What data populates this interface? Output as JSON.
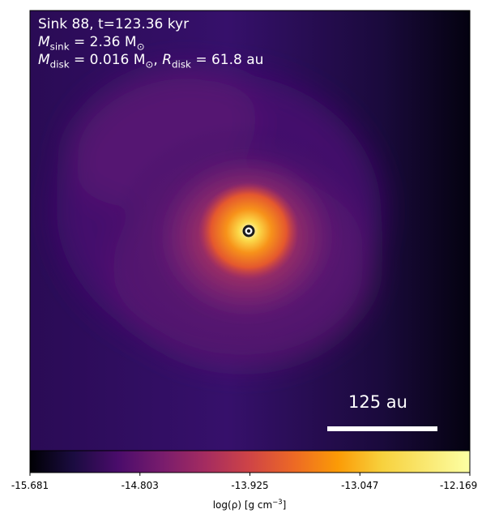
{
  "annotations": {
    "line1": "Sink 88, t=123.36 kyr",
    "line2_sym": "M",
    "line2_sub": "sink",
    "line2_val": " = 2.36 M",
    "line2_unit_sub": "⊙",
    "line3_sym": "M",
    "line3_sub": "disk",
    "line3_val": " = 0.016 M",
    "line3_unit_sub": "⊙",
    "line3_sep": ", ",
    "line3_sym2": "R",
    "line3_sub2": "disk",
    "line3_val2": " = 61.8 au"
  },
  "scale_bar": {
    "label": "125 au"
  },
  "chart_data": {
    "type": "heatmap",
    "title": "",
    "colormap": "inferno",
    "colorbar": {
      "label_main": "log(ρ) [g cm",
      "label_sup": "−3",
      "label_end": "]",
      "ticks": [
        "-15.681",
        "-14.803",
        "-13.925",
        "-13.047",
        "-12.169"
      ],
      "range": [
        -15.681,
        -12.169
      ]
    },
    "sink_marker": "ring"
  }
}
